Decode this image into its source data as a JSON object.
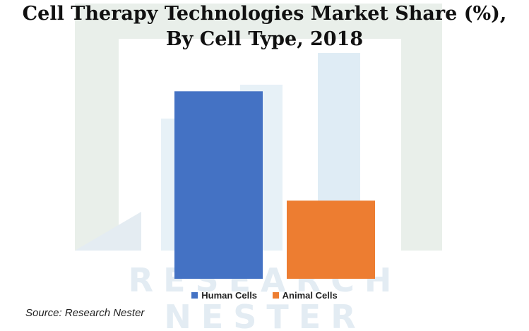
{
  "title_line1": "Cell Therapy Technologies Market Share (%),",
  "title_line2": "By Cell Type, 2018",
  "source": "Source: Research Nester",
  "watermark": {
    "line1": "RESEARCH",
    "line2": "NESTER"
  },
  "chart_data": {
    "type": "bar",
    "title": "Cell Therapy Technologies Market Share (%), By Cell Type, 2018",
    "categories": [
      "Human Cells",
      "Animal Cells"
    ],
    "values": [
      72,
      30
    ],
    "colors": [
      "#4472C4",
      "#ED7D31"
    ],
    "legend": [
      "Human Cells",
      "Animal Cells"
    ],
    "legend_position": "bottom",
    "grid": false,
    "ylim": [
      0,
      100
    ]
  }
}
